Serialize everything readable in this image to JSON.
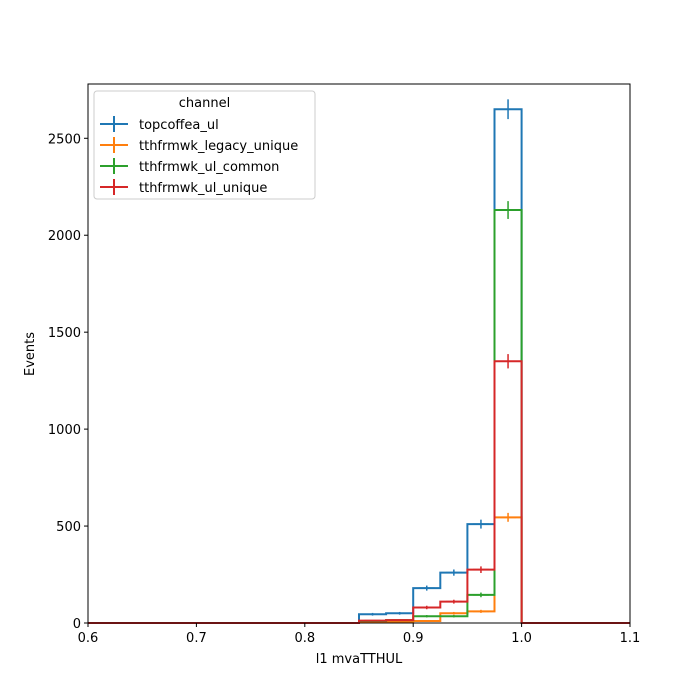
{
  "chart_data": {
    "type": "line",
    "xlabel": "l1 mvaTTHUL",
    "ylabel": "Events",
    "xlim": [
      0.6,
      1.1
    ],
    "ylim": [
      0,
      2780
    ],
    "x_ticks": [
      "0.6",
      "0.7",
      "0.8",
      "0.9",
      "1.0",
      "1.1"
    ],
    "y_ticks": [
      "0",
      "500",
      "1000",
      "1500",
      "2000",
      "2500"
    ],
    "legend_title": "channel",
    "legend_position": "top-left",
    "bin_edges": [
      0.6,
      0.625,
      0.65,
      0.675,
      0.7,
      0.725,
      0.75,
      0.775,
      0.8,
      0.825,
      0.85,
      0.875,
      0.9,
      0.925,
      0.95,
      0.975,
      1.0,
      1.025,
      1.05,
      1.075,
      1.1
    ],
    "series": [
      {
        "name": "topcoffea_ul",
        "color": "#1f77b4",
        "values": [
          0,
          0,
          0,
          0,
          0,
          0,
          0,
          0,
          0,
          0,
          45,
          50,
          180,
          260,
          510,
          2650,
          0,
          0,
          0,
          0
        ],
        "errors": [
          0,
          0,
          0,
          0,
          0,
          0,
          0,
          0,
          0,
          0,
          7,
          7,
          13,
          16,
          23,
          51,
          0,
          0,
          0,
          0
        ]
      },
      {
        "name": "tthfrmwk_legacy_unique",
        "color": "#ff7f0e",
        "values": [
          0,
          0,
          0,
          0,
          0,
          0,
          0,
          0,
          0,
          0,
          5,
          8,
          10,
          50,
          60,
          545,
          0,
          0,
          0,
          0
        ],
        "errors": [
          0,
          0,
          0,
          0,
          0,
          0,
          0,
          0,
          0,
          0,
          2,
          3,
          3,
          7,
          8,
          23,
          0,
          0,
          0,
          0
        ]
      },
      {
        "name": "tthfrmwk_ul_common",
        "color": "#2ca02c",
        "values": [
          0,
          0,
          0,
          0,
          0,
          0,
          0,
          0,
          0,
          0,
          10,
          15,
          35,
          35,
          145,
          2130,
          0,
          0,
          0,
          0
        ],
        "errors": [
          0,
          0,
          0,
          0,
          0,
          0,
          0,
          0,
          0,
          0,
          3,
          4,
          6,
          6,
          12,
          46,
          0,
          0,
          0,
          0
        ]
      },
      {
        "name": "tthfrmwk_ul_unique",
        "color": "#d62728",
        "values": [
          0,
          0,
          0,
          0,
          0,
          0,
          0,
          0,
          0,
          0,
          12,
          15,
          80,
          110,
          275,
          1350,
          0,
          0,
          0,
          0
        ],
        "errors": [
          0,
          0,
          0,
          0,
          0,
          0,
          0,
          0,
          0,
          0,
          3,
          4,
          9,
          10,
          17,
          37,
          0,
          0,
          0,
          0
        ]
      }
    ]
  }
}
